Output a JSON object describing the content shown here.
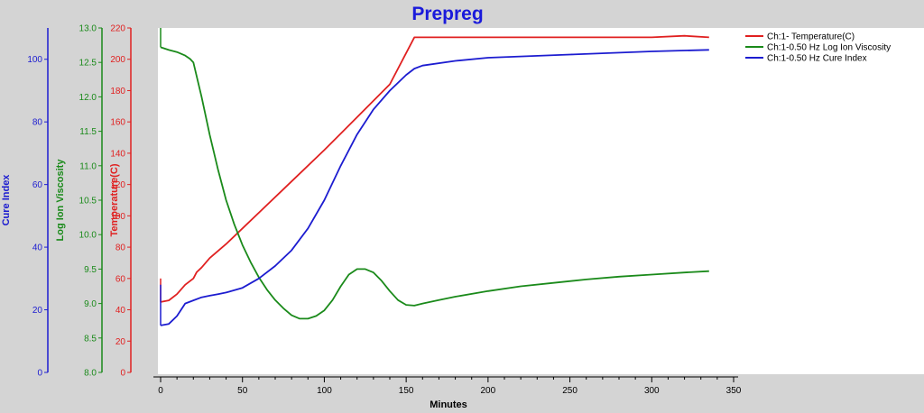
{
  "chart_data": {
    "type": "line",
    "title": "Prepreg",
    "xlabel": "Minutes",
    "xlim": [
      0,
      350
    ],
    "x_ticks": [
      "0",
      "50",
      "100",
      "150",
      "200",
      "250",
      "300",
      "350"
    ],
    "grid": false,
    "legend_position": "top-right",
    "axes": [
      {
        "id": "temperature",
        "label": "Temperature(C)",
        "color": "#e02020",
        "ylim": [
          0,
          220
        ],
        "ticks": [
          "0",
          "20",
          "40",
          "60",
          "80",
          "100",
          "120",
          "140",
          "160",
          "180",
          "200",
          "220"
        ]
      },
      {
        "id": "viscosity",
        "label": "Log Ion Viscosity",
        "color": "#1a8a1a",
        "ylim": [
          8.0,
          13.0
        ],
        "ticks": [
          "8.0",
          "8.5",
          "9.0",
          "9.5",
          "10.0",
          "10.5",
          "11.0",
          "11.5",
          "12.0",
          "12.5",
          "13.0"
        ]
      },
      {
        "id": "cure",
        "label": "Cure Index",
        "color": "#1c1cd0",
        "ylim": [
          0,
          110
        ],
        "ticks": [
          "0",
          "20",
          "40",
          "60",
          "80",
          "100"
        ]
      }
    ],
    "series": [
      {
        "name": "Ch:1- Temperature(C)",
        "axis": "temperature",
        "color": "#e02020",
        "x": [
          0,
          5,
          10,
          15,
          20,
          22,
          25,
          30,
          40,
          50,
          60,
          80,
          100,
          120,
          140,
          155,
          160,
          200,
          250,
          300,
          320,
          335
        ],
        "y": [
          45,
          46,
          50,
          56,
          60,
          64,
          67,
          73,
          82,
          92,
          102,
          122,
          142,
          163,
          184,
          214,
          214,
          214,
          214,
          214,
          215,
          214
        ]
      },
      {
        "name": "Ch:1-0.50 Hz Log Ion Viscosity",
        "axis": "viscosity",
        "color": "#1a8a1a",
        "x": [
          0,
          5,
          10,
          15,
          18,
          20,
          25,
          30,
          35,
          40,
          45,
          50,
          55,
          60,
          65,
          70,
          75,
          80,
          85,
          90,
          95,
          100,
          105,
          110,
          115,
          120,
          125,
          130,
          135,
          140,
          145,
          150,
          155,
          160,
          170,
          180,
          200,
          220,
          240,
          260,
          280,
          300,
          320,
          335
        ],
        "y": [
          12.72,
          12.68,
          12.65,
          12.6,
          12.55,
          12.5,
          12.0,
          11.45,
          10.95,
          10.5,
          10.15,
          9.85,
          9.6,
          9.38,
          9.2,
          9.05,
          8.93,
          8.83,
          8.78,
          8.78,
          8.82,
          8.9,
          9.05,
          9.25,
          9.42,
          9.5,
          9.5,
          9.45,
          9.33,
          9.18,
          9.05,
          8.98,
          8.97,
          9.0,
          9.05,
          9.1,
          9.18,
          9.25,
          9.3,
          9.35,
          9.39,
          9.42,
          9.45,
          9.47
        ]
      },
      {
        "name": "Ch:1-0.50 Hz Cure Index",
        "axis": "cure",
        "color": "#1c1cd0",
        "x": [
          0,
          5,
          10,
          15,
          20,
          25,
          30,
          35,
          40,
          50,
          60,
          70,
          80,
          90,
          100,
          110,
          120,
          130,
          140,
          150,
          155,
          160,
          180,
          200,
          250,
          300,
          335
        ],
        "y": [
          15,
          15.5,
          18,
          22,
          23,
          24,
          24.5,
          25,
          25.5,
          27,
          30,
          34,
          39,
          46,
          55,
          66,
          76,
          84,
          90,
          95,
          97,
          98,
          99.5,
          100.5,
          101.5,
          102.5,
          103
        ]
      }
    ]
  }
}
